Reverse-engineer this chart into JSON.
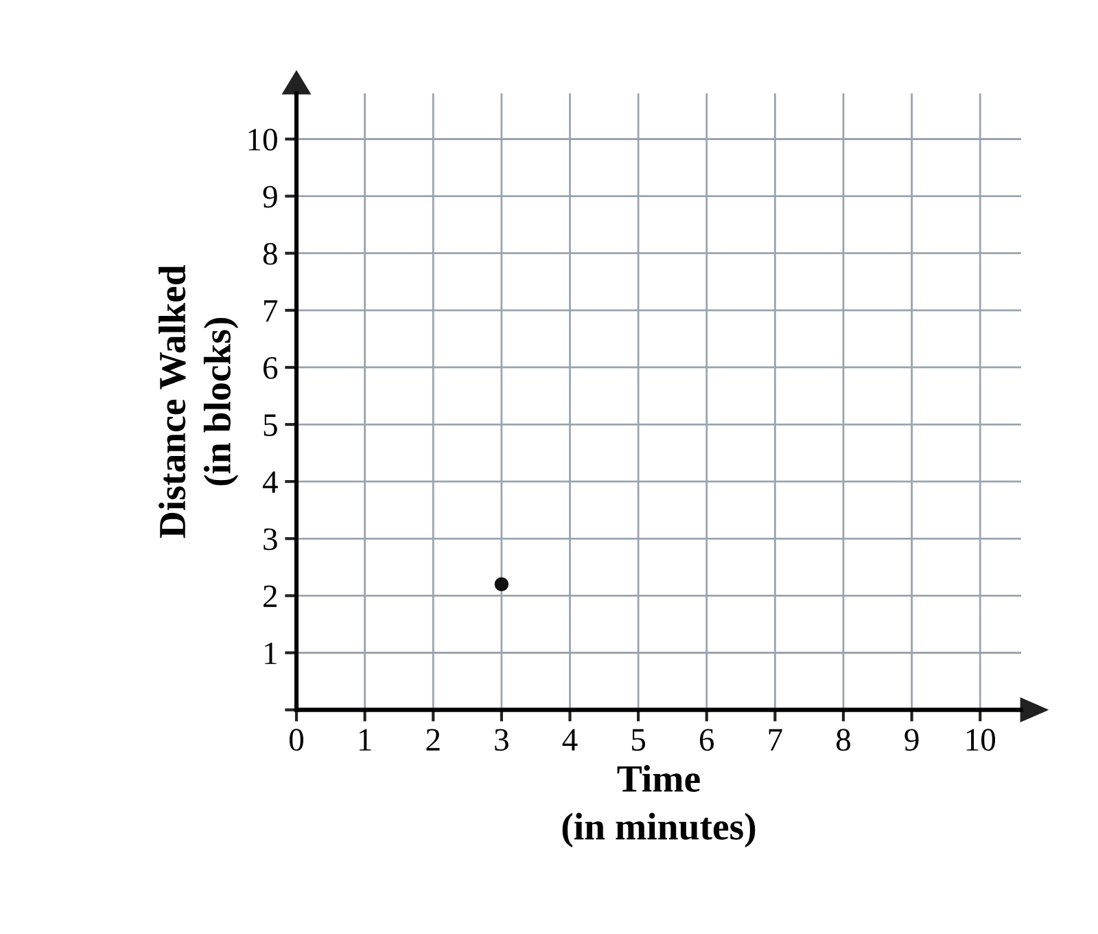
{
  "chart_data": {
    "type": "scatter",
    "xlabel": "Time\n(in minutes)",
    "ylabel": "Distance Walked\n(in blocks)",
    "x": [
      3
    ],
    "series": [
      {
        "color": "#111111",
        "values": [
          2.2
        ]
      }
    ],
    "xlim": [
      0,
      10.6
    ],
    "ylim": [
      0,
      10.8
    ],
    "xticks": [
      0,
      1,
      2,
      3,
      4,
      5,
      6,
      7,
      8,
      9,
      10
    ],
    "yticks": [
      {
        "value": 0,
        "label": null
      },
      1,
      2,
      3,
      4,
      5,
      6,
      7,
      8,
      9,
      10
    ],
    "grid": true,
    "marker": "circle"
  }
}
